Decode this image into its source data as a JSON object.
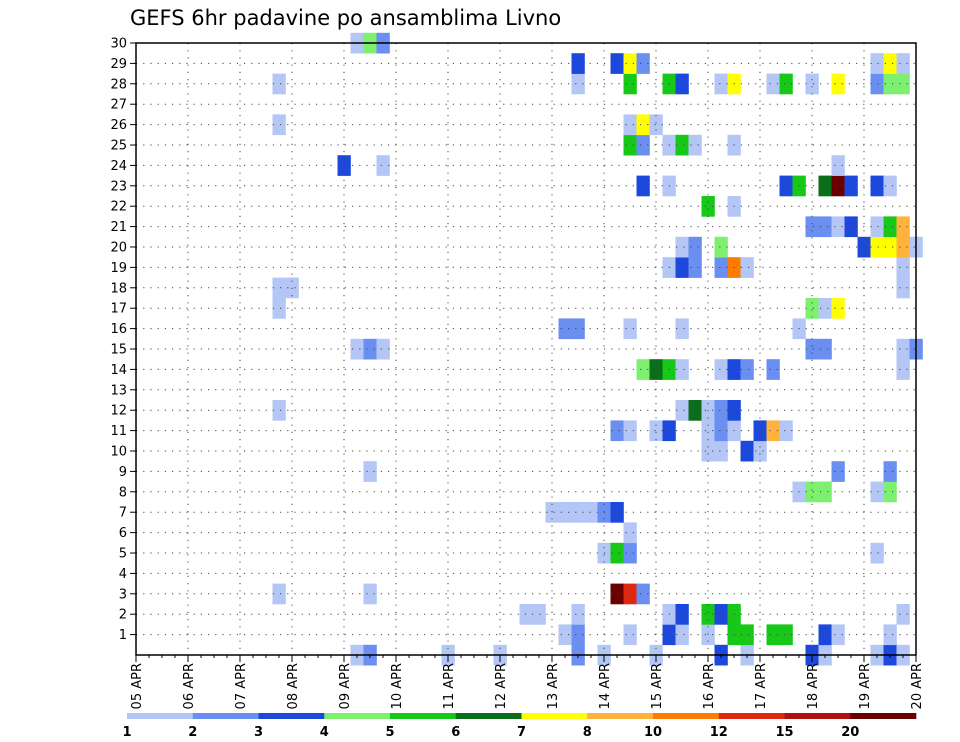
{
  "chart_data": {
    "type": "heatmap",
    "title": "GEFS 6hr padavine po ansamblima Livno",
    "xlabel": "",
    "ylabel": "",
    "x_tick_labels": [
      "05 APR",
      "06 APR",
      "07 APR",
      "08 APR",
      "09 APR",
      "10 APR",
      "11 APR",
      "12 APR",
      "13 APR",
      "14 APR",
      "15 APR",
      "16 APR",
      "17 APR",
      "18 APR",
      "19 APR",
      "20 APR"
    ],
    "y_tick_labels": [
      "1",
      "2",
      "3",
      "4",
      "5",
      "6",
      "7",
      "8",
      "9",
      "10",
      "11",
      "12",
      "13",
      "14",
      "15",
      "16",
      "17",
      "18",
      "19",
      "20",
      "21",
      "22",
      "23",
      "24",
      "25",
      "26",
      "27",
      "28",
      "29",
      "30"
    ],
    "xlim_steps": [
      0,
      60
    ],
    "steps_per_day": 4,
    "ylim": [
      0,
      30
    ],
    "grid": true,
    "legend": {
      "placement": "bottom",
      "boundaries": [
        "1",
        "2",
        "3",
        "4",
        "5",
        "6",
        "7",
        "8",
        "10",
        "12",
        "15",
        "20"
      ],
      "colors": [
        "#b4c6f5",
        "#6b8ff0",
        "#1c48dc",
        "#7ef070",
        "#18c818",
        "#0a6e1a",
        "#ffff00",
        "#ffb23c",
        "#ff7a00",
        "#e02810",
        "#b01010",
        "#6a0000"
      ]
    },
    "cells": [
      [
        17,
        0,
        1
      ],
      [
        18,
        0,
        2
      ],
      [
        24,
        0,
        1
      ],
      [
        28,
        0,
        1
      ],
      [
        34,
        0,
        2
      ],
      [
        36,
        0,
        1
      ],
      [
        40,
        0,
        1
      ],
      [
        45,
        0,
        3
      ],
      [
        47,
        0,
        1
      ],
      [
        52,
        0,
        3
      ],
      [
        53,
        0,
        1
      ],
      [
        57,
        0,
        1
      ],
      [
        58,
        0,
        3
      ],
      [
        59,
        0,
        1
      ],
      [
        33,
        1,
        1
      ],
      [
        34,
        1,
        2
      ],
      [
        38,
        1,
        1
      ],
      [
        41,
        1,
        3
      ],
      [
        42,
        1,
        1
      ],
      [
        44,
        1,
        1
      ],
      [
        46,
        1,
        5
      ],
      [
        47,
        1,
        5
      ],
      [
        49,
        1,
        5
      ],
      [
        50,
        1,
        5
      ],
      [
        53,
        1,
        3
      ],
      [
        54,
        1,
        1
      ],
      [
        58,
        1,
        1
      ],
      [
        30,
        2,
        1
      ],
      [
        31,
        2,
        1
      ],
      [
        34,
        2,
        1
      ],
      [
        41,
        2,
        1
      ],
      [
        42,
        2,
        3
      ],
      [
        44,
        2,
        5
      ],
      [
        45,
        2,
        3
      ],
      [
        46,
        2,
        5
      ],
      [
        59,
        2,
        1
      ],
      [
        11,
        3,
        1
      ],
      [
        18,
        3,
        1
      ],
      [
        37,
        3,
        12
      ],
      [
        38,
        3,
        10
      ],
      [
        39,
        3,
        2
      ],
      [
        36,
        5,
        1
      ],
      [
        37,
        5,
        5
      ],
      [
        38,
        5,
        2
      ],
      [
        57,
        5,
        1
      ],
      [
        38,
        6,
        1
      ],
      [
        32,
        7,
        1
      ],
      [
        33,
        7,
        1
      ],
      [
        34,
        7,
        1
      ],
      [
        35,
        7,
        1
      ],
      [
        36,
        7,
        2
      ],
      [
        37,
        7,
        3
      ],
      [
        51,
        8,
        1
      ],
      [
        52,
        8,
        4
      ],
      [
        53,
        8,
        4
      ],
      [
        57,
        8,
        1
      ],
      [
        58,
        8,
        4
      ],
      [
        18,
        9,
        1
      ],
      [
        54,
        9,
        2
      ],
      [
        58,
        9,
        2
      ],
      [
        44,
        10,
        1
      ],
      [
        45,
        10,
        1
      ],
      [
        47,
        10,
        3
      ],
      [
        48,
        10,
        1
      ],
      [
        37,
        11,
        2
      ],
      [
        38,
        11,
        1
      ],
      [
        40,
        11,
        1
      ],
      [
        41,
        11,
        3
      ],
      [
        44,
        11,
        1
      ],
      [
        45,
        11,
        2
      ],
      [
        46,
        11,
        1
      ],
      [
        48,
        11,
        3
      ],
      [
        49,
        11,
        8
      ],
      [
        50,
        11,
        1
      ],
      [
        11,
        12,
        1
      ],
      [
        42,
        12,
        1
      ],
      [
        43,
        12,
        6
      ],
      [
        44,
        12,
        1
      ],
      [
        45,
        12,
        2
      ],
      [
        46,
        12,
        3
      ],
      [
        39,
        14,
        4
      ],
      [
        40,
        14,
        6
      ],
      [
        41,
        14,
        5
      ],
      [
        42,
        14,
        1
      ],
      [
        45,
        14,
        1
      ],
      [
        46,
        14,
        3
      ],
      [
        47,
        14,
        2
      ],
      [
        49,
        14,
        2
      ],
      [
        59,
        14,
        1
      ],
      [
        17,
        15,
        1
      ],
      [
        18,
        15,
        2
      ],
      [
        19,
        15,
        1
      ],
      [
        52,
        15,
        2
      ],
      [
        53,
        15,
        2
      ],
      [
        59,
        15,
        1
      ],
      [
        60,
        15,
        2
      ],
      [
        33,
        16,
        2
      ],
      [
        34,
        16,
        2
      ],
      [
        38,
        16,
        1
      ],
      [
        42,
        16,
        1
      ],
      [
        51,
        16,
        1
      ],
      [
        11,
        17,
        1
      ],
      [
        52,
        17,
        4
      ],
      [
        53,
        17,
        1
      ],
      [
        54,
        17,
        7
      ],
      [
        11,
        18,
        1
      ],
      [
        12,
        18,
        1
      ],
      [
        59,
        18,
        1
      ],
      [
        41,
        19,
        1
      ],
      [
        42,
        19,
        3
      ],
      [
        43,
        19,
        2
      ],
      [
        45,
        19,
        2
      ],
      [
        46,
        19,
        9
      ],
      [
        47,
        19,
        1
      ],
      [
        59,
        19,
        1
      ],
      [
        42,
        20,
        1
      ],
      [
        43,
        20,
        2
      ],
      [
        45,
        20,
        4
      ],
      [
        56,
        20,
        3
      ],
      [
        57,
        20,
        7
      ],
      [
        58,
        20,
        7
      ],
      [
        59,
        20,
        8
      ],
      [
        60,
        20,
        1
      ],
      [
        52,
        21,
        2
      ],
      [
        53,
        21,
        2
      ],
      [
        54,
        21,
        1
      ],
      [
        55,
        21,
        3
      ],
      [
        57,
        21,
        1
      ],
      [
        58,
        21,
        5
      ],
      [
        59,
        21,
        8
      ],
      [
        44,
        22,
        5
      ],
      [
        46,
        22,
        1
      ],
      [
        39,
        23,
        3
      ],
      [
        41,
        23,
        1
      ],
      [
        50,
        23,
        3
      ],
      [
        51,
        23,
        5
      ],
      [
        53,
        23,
        6
      ],
      [
        54,
        23,
        12
      ],
      [
        55,
        23,
        3
      ],
      [
        57,
        23,
        3
      ],
      [
        58,
        23,
        1
      ],
      [
        16,
        24,
        3
      ],
      [
        19,
        24,
        1
      ],
      [
        54,
        24,
        1
      ],
      [
        38,
        25,
        5
      ],
      [
        39,
        25,
        2
      ],
      [
        41,
        25,
        1
      ],
      [
        42,
        25,
        5
      ],
      [
        43,
        25,
        1
      ],
      [
        46,
        25,
        1
      ],
      [
        11,
        26,
        1
      ],
      [
        38,
        26,
        1
      ],
      [
        39,
        26,
        7
      ],
      [
        40,
        26,
        1
      ],
      [
        11,
        28,
        1
      ],
      [
        34,
        28,
        1
      ],
      [
        38,
        28,
        5
      ],
      [
        41,
        28,
        5
      ],
      [
        42,
        28,
        3
      ],
      [
        45,
        28,
        1
      ],
      [
        46,
        28,
        7
      ],
      [
        49,
        28,
        1
      ],
      [
        50,
        28,
        5
      ],
      [
        52,
        28,
        1
      ],
      [
        54,
        28,
        7
      ],
      [
        57,
        28,
        2
      ],
      [
        58,
        28,
        4
      ],
      [
        59,
        28,
        4
      ],
      [
        34,
        29,
        3
      ],
      [
        37,
        29,
        3
      ],
      [
        38,
        29,
        7
      ],
      [
        39,
        29,
        2
      ],
      [
        57,
        29,
        1
      ],
      [
        58,
        29,
        7
      ],
      [
        59,
        29,
        1
      ],
      [
        17,
        30,
        1
      ],
      [
        18,
        30,
        4
      ],
      [
        19,
        30,
        2
      ]
    ]
  }
}
